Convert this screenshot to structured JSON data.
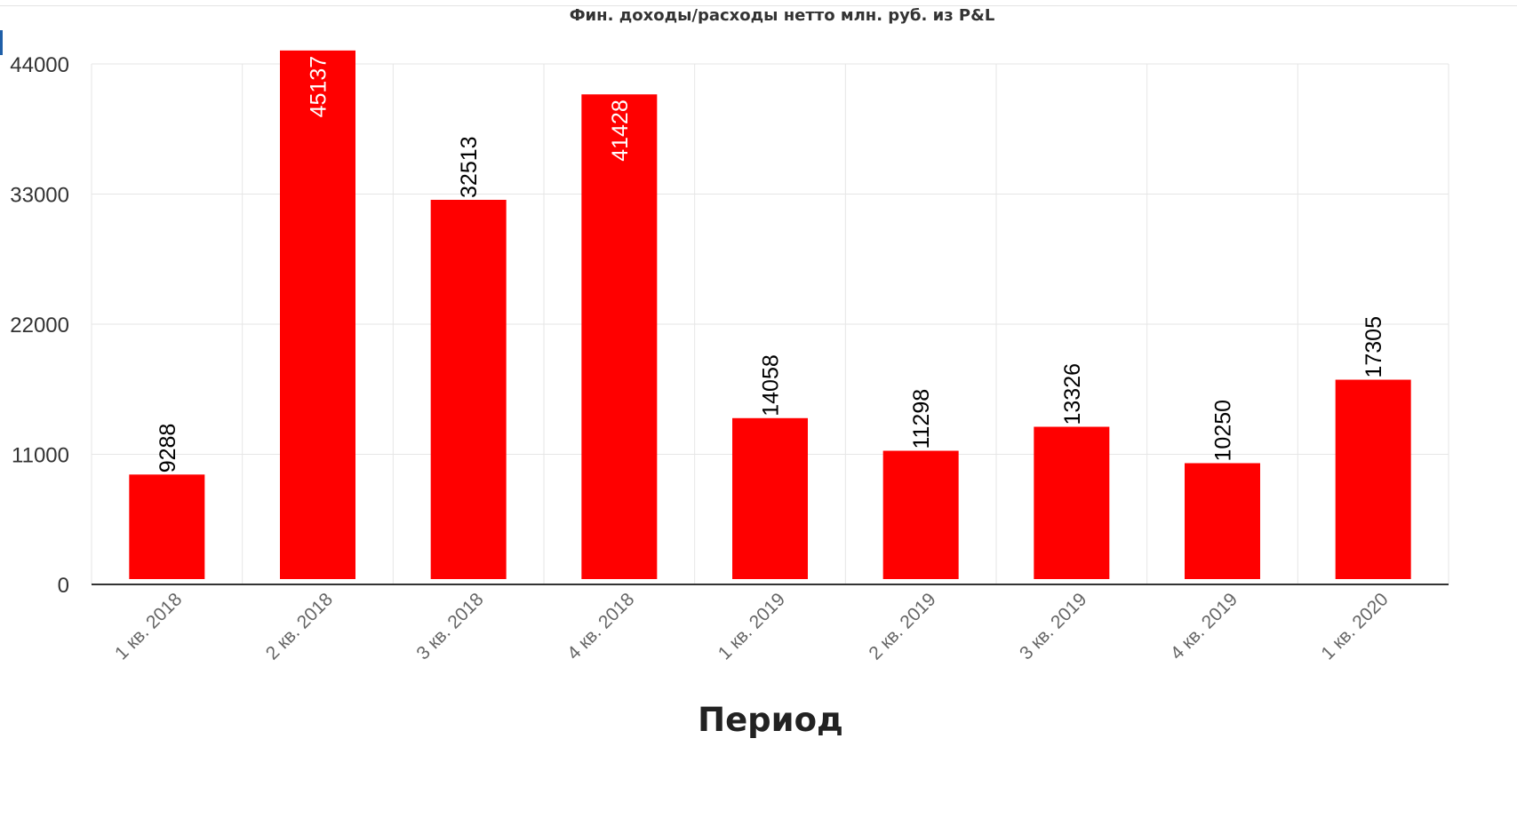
{
  "chart_data": {
    "type": "bar",
    "title": "Фин. доходы/расходы нетто млн. руб. из P&L",
    "xlabel": "Период",
    "ylabel": "",
    "categories": [
      "1 кв. 2018",
      "2 кв. 2018",
      "3 кв. 2018",
      "4 кв. 2018",
      "1 кв. 2019",
      "2 кв. 2019",
      "3 кв. 2019",
      "4 кв. 2019",
      "1 кв. 2020"
    ],
    "values": [
      9288,
      45137,
      32513,
      41428,
      14058,
      11298,
      13326,
      10250,
      17305
    ],
    "value_labels": [
      "9288",
      "45137",
      "32513",
      "41428",
      "14058",
      "11298",
      "13326",
      "10250",
      "17305"
    ],
    "ylim": [
      0,
      44000
    ],
    "yticks": [
      0,
      11000,
      22000,
      33000,
      44000
    ],
    "ytick_labels": [
      "0",
      "11000",
      "22000",
      "33000",
      "44000"
    ],
    "grid": true,
    "legend": "none",
    "colors": {
      "bar": "#ff0000",
      "grid": "#e6e6e6",
      "axis": "#333333",
      "label_inside": "#ffffff",
      "label_outside": "#000000"
    }
  }
}
